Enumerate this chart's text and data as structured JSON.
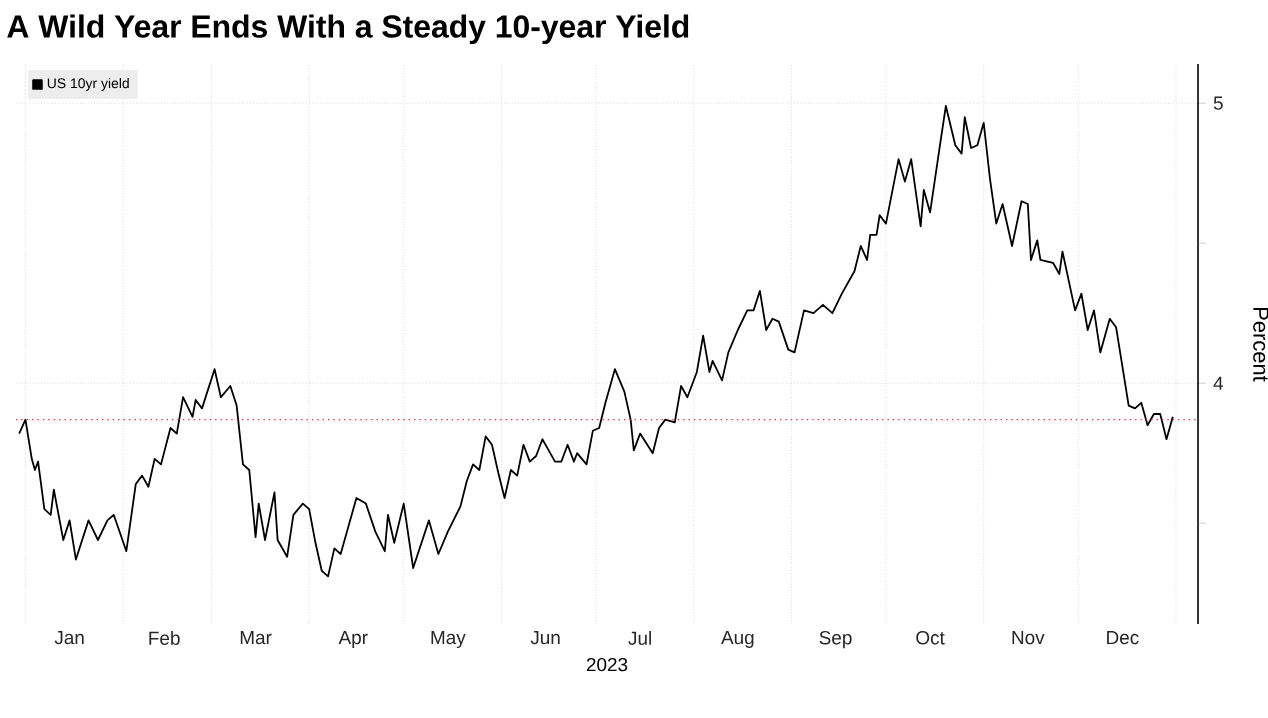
{
  "chart_data": {
    "type": "line",
    "title": "A Wild Year Ends With a Steady 10-year Yield",
    "xlabel": "2023",
    "ylabel": "Percent",
    "legend": "top left",
    "grid": true,
    "xlim": [
      "2022-12-29",
      "2024-01-08"
    ],
    "ylim": [
      3.14,
      5.14
    ],
    "xticks": [
      {
        "value": "2023-01-01",
        "label": null
      },
      {
        "value": "2023-02-01",
        "label": null
      },
      {
        "value": "2023-03-01",
        "label": null
      },
      {
        "value": "2023-04-01",
        "label": null
      },
      {
        "value": "2023-05-01",
        "label": null
      },
      {
        "value": "2023-06-01",
        "label": null
      },
      {
        "value": "2023-07-01",
        "label": null
      },
      {
        "value": "2023-08-01",
        "label": null
      },
      {
        "value": "2023-09-01",
        "label": null
      },
      {
        "value": "2023-10-01",
        "label": null
      },
      {
        "value": "2023-11-01",
        "label": null
      },
      {
        "value": "2023-12-01",
        "label": null
      },
      {
        "value": "2024-01-01",
        "label": null
      },
      {
        "value": "2023-01-15",
        "label": "Jan"
      },
      {
        "value": "2023-02-14",
        "label": "Feb"
      },
      {
        "value": "2023-03-15",
        "label": "Mar"
      },
      {
        "value": "2023-04-15",
        "label": "Apr"
      },
      {
        "value": "2023-05-15",
        "label": "May"
      },
      {
        "value": "2023-06-15",
        "label": "Jun"
      },
      {
        "value": "2023-07-15",
        "label": "Jul"
      },
      {
        "value": "2023-08-15",
        "label": "Aug"
      },
      {
        "value": "2023-09-15",
        "label": "Sep"
      },
      {
        "value": "2023-10-15",
        "label": "Oct"
      },
      {
        "value": "2023-11-15",
        "label": "Nov"
      },
      {
        "value": "2023-12-15",
        "label": "Dec"
      }
    ],
    "yticks": [
      {
        "value": 3.5,
        "label": null
      },
      4,
      {
        "value": 4.5,
        "label": null
      },
      5
    ],
    "ref_lines": [
      {
        "axis": "y",
        "value": 3.87,
        "color": "#e8303a",
        "line_style": "dotted"
      }
    ],
    "x": [
      "2022-12-30",
      "2023-01-01",
      "2023-01-03",
      "2023-01-04",
      "2023-01-05",
      "2023-01-07",
      "2023-01-09",
      "2023-01-10",
      "2023-01-13",
      "2023-01-15",
      "2023-01-17",
      "2023-01-21",
      "2023-01-24",
      "2023-01-27",
      "2023-01-29",
      "2023-02-02",
      "2023-02-05",
      "2023-02-07",
      "2023-02-09",
      "2023-02-11",
      "2023-02-13",
      "2023-02-16",
      "2023-02-18",
      "2023-02-20",
      "2023-02-23",
      "2023-02-24",
      "2023-02-26",
      "2023-03-02",
      "2023-03-04",
      "2023-03-07",
      "2023-03-09",
      "2023-03-11",
      "2023-03-13",
      "2023-03-15",
      "2023-03-16",
      "2023-03-18",
      "2023-03-21",
      "2023-03-22",
      "2023-03-25",
      "2023-03-27",
      "2023-03-30",
      "2023-04-01",
      "2023-04-03",
      "2023-04-05",
      "2023-04-07",
      "2023-04-09",
      "2023-04-11",
      "2023-04-16",
      "2023-04-19",
      "2023-04-22",
      "2023-04-25",
      "2023-04-26",
      "2023-04-28",
      "2023-05-01",
      "2023-05-04",
      "2023-05-09",
      "2023-05-12",
      "2023-05-15",
      "2023-05-19",
      "2023-05-21",
      "2023-05-23",
      "2023-05-25",
      "2023-05-27",
      "2023-05-29",
      "2023-05-31",
      "2023-06-02",
      "2023-06-04",
      "2023-06-06",
      "2023-06-08",
      "2023-06-10",
      "2023-06-12",
      "2023-06-14",
      "2023-06-16",
      "2023-06-18",
      "2023-06-20",
      "2023-06-22",
      "2023-06-24",
      "2023-06-25",
      "2023-06-28",
      "2023-06-30",
      "2023-07-02",
      "2023-07-04",
      "2023-07-07",
      "2023-07-10",
      "2023-07-12",
      "2023-07-13",
      "2023-07-15",
      "2023-07-19",
      "2023-07-21",
      "2023-07-23",
      "2023-07-26",
      "2023-07-28",
      "2023-07-30",
      "2023-08-02",
      "2023-08-04",
      "2023-08-06",
      "2023-08-07",
      "2023-08-10",
      "2023-08-12",
      "2023-08-15",
      "2023-08-18",
      "2023-08-20",
      "2023-08-22",
      "2023-08-24",
      "2023-08-26",
      "2023-08-28",
      "2023-08-31",
      "2023-09-02",
      "2023-09-05",
      "2023-09-08",
      "2023-09-11",
      "2023-09-14",
      "2023-09-17",
      "2023-09-21",
      "2023-09-23",
      "2023-09-25",
      "2023-09-26",
      "2023-09-28",
      "2023-09-29",
      "2023-10-01",
      "2023-10-05",
      "2023-10-07",
      "2023-10-09",
      "2023-10-12",
      "2023-10-13",
      "2023-10-15",
      "2023-10-18",
      "2023-10-20",
      "2023-10-23",
      "2023-10-25",
      "2023-10-26",
      "2023-10-28",
      "2023-10-30",
      "2023-11-01",
      "2023-11-03",
      "2023-11-05",
      "2023-11-07",
      "2023-11-10",
      "2023-11-13",
      "2023-11-15",
      "2023-11-16",
      "2023-11-18",
      "2023-11-19",
      "2023-11-23",
      "2023-11-25",
      "2023-11-26",
      "2023-11-30",
      "2023-12-02",
      "2023-12-04",
      "2023-12-06",
      "2023-12-08",
      "2023-12-11",
      "2023-12-13",
      "2023-12-17",
      "2023-12-19",
      "2023-12-21",
      "2023-12-23",
      "2023-12-25",
      "2023-12-27",
      "2023-12-29",
      "2023-12-31"
    ],
    "series": [
      {
        "name": "US 10yr yield",
        "color": "#000000",
        "values": [
          3.82,
          3.87,
          3.73,
          3.69,
          3.72,
          3.55,
          3.53,
          3.62,
          3.44,
          3.51,
          3.37,
          3.51,
          3.44,
          3.51,
          3.53,
          3.4,
          3.64,
          3.67,
          3.63,
          3.73,
          3.71,
          3.84,
          3.82,
          3.95,
          3.88,
          3.94,
          3.91,
          4.05,
          3.95,
          3.99,
          3.92,
          3.71,
          3.69,
          3.45,
          3.57,
          3.44,
          3.61,
          3.44,
          3.38,
          3.53,
          3.57,
          3.55,
          3.43,
          3.33,
          3.31,
          3.41,
          3.39,
          3.59,
          3.57,
          3.47,
          3.4,
          3.53,
          3.43,
          3.57,
          3.34,
          3.51,
          3.39,
          3.47,
          3.56,
          3.65,
          3.71,
          3.69,
          3.81,
          3.78,
          3.68,
          3.59,
          3.69,
          3.67,
          3.78,
          3.72,
          3.74,
          3.8,
          3.76,
          3.72,
          3.72,
          3.78,
          3.72,
          3.75,
          3.71,
          3.83,
          3.84,
          3.93,
          4.05,
          3.97,
          3.87,
          3.76,
          3.82,
          3.75,
          3.84,
          3.87,
          3.86,
          3.99,
          3.95,
          4.04,
          4.17,
          4.04,
          4.08,
          4.01,
          4.11,
          4.19,
          4.26,
          4.26,
          4.33,
          4.19,
          4.23,
          4.22,
          4.12,
          4.11,
          4.26,
          4.25,
          4.28,
          4.25,
          4.32,
          4.4,
          4.49,
          4.44,
          4.53,
          4.53,
          4.6,
          4.57,
          4.8,
          4.72,
          4.8,
          4.56,
          4.69,
          4.61,
          4.84,
          4.99,
          4.85,
          4.82,
          4.95,
          4.84,
          4.85,
          4.93,
          4.73,
          4.57,
          4.64,
          4.49,
          4.65,
          4.64,
          4.44,
          4.51,
          4.44,
          4.43,
          4.39,
          4.47,
          4.26,
          4.32,
          4.19,
          4.26,
          4.11,
          4.23,
          4.2,
          3.92,
          3.91,
          3.93,
          3.85,
          3.89,
          3.89,
          3.8,
          3.88
        ]
      }
    ]
  }
}
